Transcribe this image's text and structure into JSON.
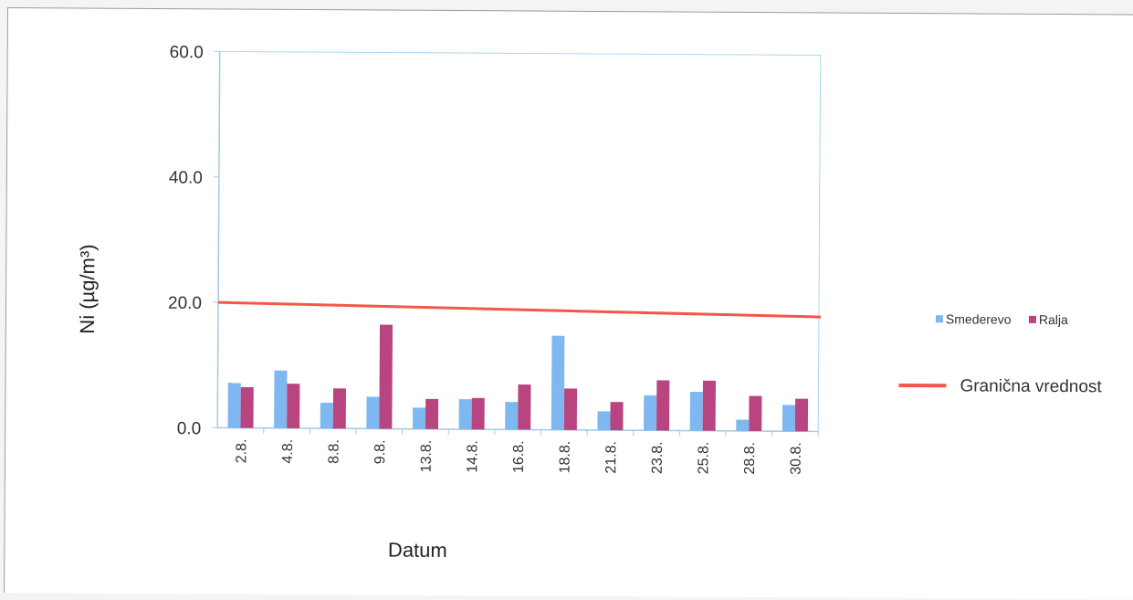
{
  "chart_data": {
    "type": "bar",
    "xlabel": "Datum",
    "ylabel": "Ni (µg/m³)",
    "ylim": [
      0,
      60
    ],
    "yticks": [
      "0.0",
      "20.0",
      "40.0",
      "60.0"
    ],
    "categories": [
      "2.8.",
      "4.8.",
      "8.8.",
      "9.8.",
      "13.8.",
      "14.8.",
      "16.8.",
      "18.8.",
      "21.8.",
      "23.8.",
      "25.8.",
      "28.8.",
      "30.8."
    ],
    "series": [
      {
        "name": "Smederevo",
        "color": "#7fb8f0",
        "values": [
          7.2,
          9.2,
          4.1,
          5.1,
          3.4,
          4.8,
          4.4,
          15.0,
          3.0,
          5.6,
          6.2,
          1.8,
          4.2
        ]
      },
      {
        "name": "Ralja",
        "color": "#b8457f",
        "values": [
          6.5,
          7.1,
          6.4,
          16.6,
          4.8,
          5.0,
          7.2,
          6.6,
          4.5,
          8.0,
          8.0,
          5.6,
          5.2
        ]
      }
    ],
    "limit_line": {
      "name": "Granična vrednost",
      "value": 20,
      "color": "#f2584a"
    },
    "legend_position": "right",
    "grid": false
  },
  "colors": {
    "axis": "#a8c8e0",
    "plot_border": "#a8d8ee"
  }
}
